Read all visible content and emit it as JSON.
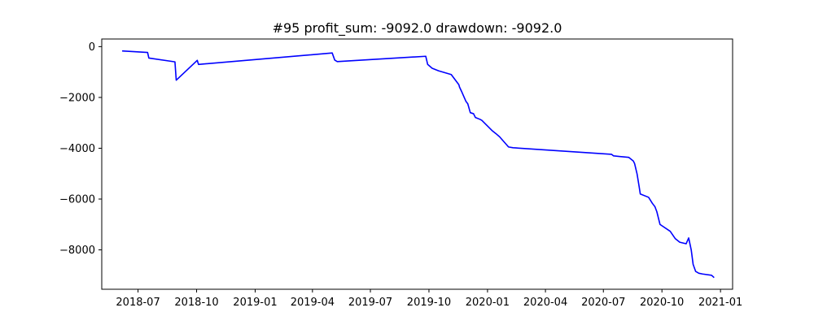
{
  "chart_data": {
    "type": "line",
    "title": "#95   profit_sum: -9092.0 drawdown: -9092.0",
    "xlabel": "",
    "ylabel": "",
    "x_axis_type": "date",
    "xlim": [
      "2018-05-05",
      "2021-01-20"
    ],
    "ylim": [
      -9550,
      300
    ],
    "grid": false,
    "legend": "none",
    "line_color": "#0000ff",
    "x_ticks": [
      "2018-07",
      "2018-10",
      "2019-01",
      "2019-04",
      "2019-07",
      "2019-10",
      "2020-01",
      "2020-04",
      "2020-07",
      "2020-10",
      "2021-01"
    ],
    "y_ticks": [
      0,
      -2000,
      -4000,
      -6000,
      -8000
    ],
    "y_tick_labels": [
      "0",
      "−2000",
      "−4000",
      "−6000",
      "−8000"
    ],
    "series": [
      {
        "x": [
          "2018-06-06",
          "2018-07-16",
          "2018-07-18",
          "2018-08-28",
          "2018-08-30",
          "2018-10-02",
          "2018-10-04",
          "2019-05-02",
          "2019-05-06",
          "2019-05-10",
          "2019-09-26",
          "2019-09-29",
          "2019-10-06",
          "2019-10-16",
          "2019-11-05",
          "2019-11-17",
          "2019-11-18",
          "2019-11-21",
          "2019-11-28",
          "2019-12-01",
          "2019-12-05",
          "2019-12-10",
          "2019-12-13",
          "2019-12-20",
          "2019-12-23",
          "2020-01-08",
          "2020-01-14",
          "2020-01-20",
          "2020-02-03",
          "2020-02-10",
          "2020-07-14",
          "2020-07-17",
          "2020-08-10",
          "2020-08-17",
          "2020-08-19",
          "2020-08-23",
          "2020-08-26",
          "2020-08-28",
          "2020-09-10",
          "2020-09-16",
          "2020-09-20",
          "2020-09-23",
          "2020-09-28",
          "2020-10-14",
          "2020-10-22",
          "2020-10-29",
          "2020-11-08",
          "2020-11-12",
          "2020-11-16",
          "2020-11-19",
          "2020-11-23",
          "2020-11-28",
          "2020-12-04",
          "2020-12-18",
          "2020-12-22"
        ],
        "y": [
          -170,
          -230,
          -450,
          -600,
          -1320,
          -540,
          -700,
          -250,
          -530,
          -590,
          -380,
          -700,
          -850,
          -950,
          -1100,
          -1500,
          -1590,
          -1750,
          -2150,
          -2250,
          -2600,
          -2640,
          -2790,
          -2860,
          -2900,
          -3300,
          -3420,
          -3550,
          -3950,
          -3980,
          -4240,
          -4300,
          -4360,
          -4500,
          -4600,
          -5020,
          -5480,
          -5800,
          -5930,
          -6170,
          -6300,
          -6500,
          -7000,
          -7270,
          -7560,
          -7700,
          -7760,
          -7530,
          -8000,
          -8570,
          -8850,
          -8920,
          -8950,
          -9000,
          -9092
        ]
      }
    ]
  }
}
